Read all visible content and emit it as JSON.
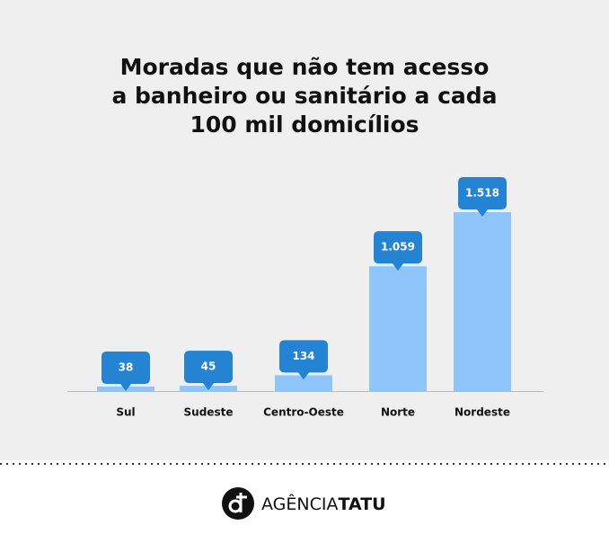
{
  "chart_data": {
    "type": "bar",
    "title": [
      "Moradas que não tem acesso",
      "a banheiro ou sanitário a cada",
      "100 mil domicílios"
    ],
    "categories": [
      "Sul",
      "Sudeste",
      "Centro-Oeste",
      "Norte",
      "Nordeste"
    ],
    "values": [
      38,
      45,
      134,
      1059,
      1518
    ],
    "value_labels": [
      "38",
      "45",
      "134",
      "1.059",
      "1.518"
    ],
    "color": "#8ec6fb",
    "label_color": "#2583d4"
  },
  "footer": {
    "brand": [
      "AGÊNCIA",
      "TATU"
    ]
  }
}
